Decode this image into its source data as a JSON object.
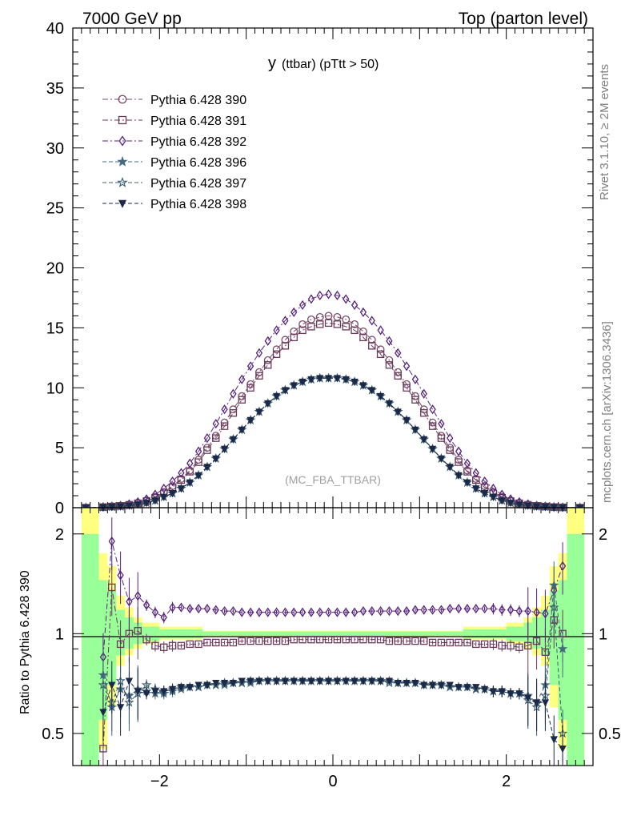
{
  "header": {
    "left": "7000 GeV pp",
    "right": "Top (parton level)",
    "plot_title_main": "y",
    "plot_title_sub": "(ttbar)  (pTtt > 50)",
    "analysis_tag": "(MC_FBA_TTBAR)",
    "side_rivet": "Rivet 3.1.10, ≥ 2M events",
    "side_mcplots": "mcplots.cern.ch [arXiv:1306.3436]",
    "ratio_ylabel": "Ratio to Pythia 6.428 390"
  },
  "colors": {
    "p390": "#7b4a68",
    "p391": "#6a3a5c",
    "p392": "#56237d",
    "p396": "#456a80",
    "p397": "#3a5e70",
    "p398": "#1c2848",
    "band_yellow": "#ffff80",
    "band_green": "#99ff99"
  },
  "chart_data": [
    {
      "type": "scatter",
      "panel": "main",
      "xlim": [
        -3,
        3
      ],
      "ylim": [
        0,
        40
      ],
      "y_ticks": [
        "0",
        "5",
        "10",
        "15",
        "20",
        "25",
        "30",
        "35",
        "40"
      ],
      "x": [
        -2.85,
        -2.65,
        -2.55,
        -2.45,
        -2.35,
        -2.25,
        -2.15,
        -2.05,
        -1.95,
        -1.85,
        -1.75,
        -1.65,
        -1.55,
        -1.45,
        -1.35,
        -1.25,
        -1.15,
        -1.05,
        -0.95,
        -0.85,
        -0.75,
        -0.65,
        -0.55,
        -0.45,
        -0.35,
        -0.25,
        -0.15,
        -0.05,
        0.05,
        0.15,
        0.25,
        0.35,
        0.45,
        0.55,
        0.65,
        0.75,
        0.85,
        0.95,
        1.05,
        1.15,
        1.25,
        1.35,
        1.45,
        1.55,
        1.65,
        1.75,
        1.85,
        1.95,
        2.05,
        2.15,
        2.25,
        2.35,
        2.45,
        2.55,
        2.65,
        2.85
      ],
      "series": [
        {
          "name": "Pythia 6.428 390",
          "marker": "circle-open",
          "line": "dashdot",
          "color_key": "p390",
          "values": [
            0.0,
            0.05,
            0.1,
            0.15,
            0.25,
            0.4,
            0.6,
            0.9,
            1.3,
            1.8,
            2.4,
            3.1,
            4.0,
            5.0,
            6.0,
            7.1,
            8.2,
            9.3,
            10.3,
            11.3,
            12.3,
            13.2,
            14.0,
            14.7,
            15.3,
            15.7,
            15.9,
            16.0,
            15.9,
            15.7,
            15.3,
            14.7,
            14.0,
            13.2,
            12.3,
            11.3,
            10.3,
            9.3,
            8.2,
            7.1,
            6.0,
            5.0,
            4.0,
            3.1,
            2.4,
            1.8,
            1.3,
            0.9,
            0.6,
            0.4,
            0.25,
            0.15,
            0.1,
            0.05,
            0.03,
            0.0
          ]
        },
        {
          "name": "Pythia 6.428 391",
          "marker": "square-open",
          "line": "dashdot",
          "color_key": "p391",
          "values": [
            0.0,
            0.05,
            0.1,
            0.15,
            0.24,
            0.37,
            0.55,
            0.83,
            1.2,
            1.7,
            2.3,
            3.0,
            3.8,
            4.8,
            5.8,
            6.8,
            7.9,
            9.0,
            10.0,
            11.0,
            11.9,
            12.8,
            13.5,
            14.2,
            14.8,
            15.1,
            15.3,
            15.4,
            15.3,
            15.1,
            14.8,
            14.2,
            13.5,
            12.8,
            11.9,
            11.0,
            10.0,
            9.0,
            7.9,
            6.8,
            5.8,
            4.8,
            3.8,
            3.0,
            2.3,
            1.7,
            1.2,
            0.83,
            0.55,
            0.37,
            0.24,
            0.15,
            0.1,
            0.05,
            0.03,
            0.0
          ]
        },
        {
          "name": "Pythia 6.428 392",
          "marker": "diamond-open",
          "line": "dashdot",
          "color_key": "p392",
          "values": [
            0.0,
            0.06,
            0.12,
            0.18,
            0.3,
            0.48,
            0.72,
            1.1,
            1.6,
            2.2,
            2.9,
            3.7,
            4.7,
            5.8,
            7.0,
            8.2,
            9.5,
            10.7,
            11.8,
            12.9,
            13.9,
            14.8,
            15.6,
            16.3,
            16.9,
            17.4,
            17.7,
            17.8,
            17.7,
            17.4,
            16.9,
            16.3,
            15.6,
            14.8,
            13.9,
            12.9,
            11.8,
            10.7,
            9.5,
            8.2,
            7.0,
            5.8,
            4.7,
            3.7,
            2.9,
            2.2,
            1.6,
            1.1,
            0.72,
            0.48,
            0.3,
            0.18,
            0.12,
            0.06,
            0.03,
            0.0
          ]
        },
        {
          "name": "Pythia 6.428 396",
          "marker": "star-filled",
          "line": "dashed",
          "color_key": "p396",
          "values": [
            0.0,
            0.04,
            0.07,
            0.1,
            0.17,
            0.27,
            0.4,
            0.6,
            0.9,
            1.2,
            1.6,
            2.1,
            2.7,
            3.4,
            4.1,
            4.9,
            5.7,
            6.5,
            7.3,
            8.0,
            8.7,
            9.3,
            9.8,
            10.2,
            10.5,
            10.7,
            10.8,
            10.8,
            10.8,
            10.7,
            10.5,
            10.2,
            9.8,
            9.3,
            8.7,
            8.0,
            7.3,
            6.5,
            5.7,
            4.9,
            4.1,
            3.4,
            2.7,
            2.1,
            1.6,
            1.2,
            0.9,
            0.6,
            0.4,
            0.27,
            0.17,
            0.1,
            0.07,
            0.04,
            0.02,
            0.0
          ]
        },
        {
          "name": "Pythia 6.428 397",
          "marker": "star-open",
          "line": "dashed",
          "color_key": "p397",
          "values": [
            0.0,
            0.04,
            0.07,
            0.1,
            0.17,
            0.27,
            0.4,
            0.6,
            0.9,
            1.2,
            1.6,
            2.1,
            2.7,
            3.4,
            4.1,
            4.9,
            5.7,
            6.5,
            7.3,
            8.0,
            8.7,
            9.3,
            9.8,
            10.2,
            10.5,
            10.7,
            10.8,
            10.8,
            10.8,
            10.7,
            10.5,
            10.2,
            9.8,
            9.3,
            8.7,
            8.0,
            7.3,
            6.5,
            5.7,
            4.9,
            4.1,
            3.4,
            2.7,
            2.1,
            1.6,
            1.2,
            0.9,
            0.6,
            0.4,
            0.27,
            0.17,
            0.1,
            0.07,
            0.04,
            0.02,
            0.0
          ]
        },
        {
          "name": "Pythia 6.428 398",
          "marker": "triangle-down-filled",
          "line": "dashed",
          "color_key": "p398",
          "values": [
            0.0,
            0.04,
            0.07,
            0.1,
            0.17,
            0.27,
            0.4,
            0.6,
            0.9,
            1.2,
            1.6,
            2.1,
            2.7,
            3.4,
            4.1,
            4.9,
            5.7,
            6.5,
            7.3,
            8.0,
            8.7,
            9.3,
            9.8,
            10.2,
            10.5,
            10.7,
            10.8,
            10.8,
            10.8,
            10.7,
            10.5,
            10.2,
            9.8,
            9.3,
            8.7,
            8.0,
            7.3,
            6.5,
            5.7,
            4.9,
            4.1,
            3.4,
            2.7,
            2.1,
            1.6,
            1.2,
            0.9,
            0.6,
            0.4,
            0.27,
            0.17,
            0.1,
            0.07,
            0.04,
            0.02,
            0.0
          ]
        }
      ]
    },
    {
      "type": "scatter",
      "panel": "ratio",
      "xlim": [
        -3,
        3
      ],
      "ylim": [
        0.4,
        2.4
      ],
      "y_scale": "log",
      "x_ticks": [
        "−2",
        "0",
        "2"
      ],
      "x_tick_values": [
        -2,
        0,
        2
      ],
      "y_ticks": [
        "0.5",
        "1",
        "2"
      ],
      "y_tick_values": [
        0.5,
        1,
        2
      ],
      "reference_line": 1,
      "bands": {
        "x_edges": [
          -2.9,
          -2.7,
          -2.6,
          -2.5,
          -2.4,
          -2.3,
          -2.2,
          -2.0,
          -1.5,
          1.5,
          2.0,
          2.2,
          2.3,
          2.4,
          2.5,
          2.6,
          2.7,
          2.9
        ],
        "yellow_lo": [
          0.2,
          0.45,
          0.6,
          0.8,
          0.86,
          0.9,
          0.93,
          0.96,
          0.98,
          0.96,
          0.93,
          0.9,
          0.86,
          0.8,
          0.6,
          0.45,
          0.2
        ],
        "yellow_hi": [
          3.0,
          1.75,
          1.6,
          1.3,
          1.2,
          1.12,
          1.08,
          1.05,
          1.02,
          1.05,
          1.08,
          1.12,
          1.2,
          1.3,
          1.6,
          1.75,
          3.0
        ],
        "green_lo": [
          0.3,
          0.55,
          0.7,
          0.86,
          0.9,
          0.93,
          0.95,
          0.97,
          0.985,
          0.97,
          0.95,
          0.93,
          0.9,
          0.86,
          0.7,
          0.55,
          0.3
        ],
        "green_hi": [
          2.0,
          1.45,
          1.35,
          1.18,
          1.12,
          1.08,
          1.05,
          1.03,
          1.015,
          1.03,
          1.05,
          1.08,
          1.12,
          1.18,
          1.35,
          1.45,
          2.0
        ]
      },
      "x": [
        -2.65,
        -2.55,
        -2.45,
        -2.35,
        -2.25,
        -2.15,
        -2.05,
        -1.95,
        -1.85,
        -1.75,
        -1.65,
        -1.55,
        -1.45,
        -1.35,
        -1.25,
        -1.15,
        -1.05,
        -0.95,
        -0.85,
        -0.75,
        -0.65,
        -0.55,
        -0.45,
        -0.35,
        -0.25,
        -0.15,
        -0.05,
        0.05,
        0.15,
        0.25,
        0.35,
        0.45,
        0.55,
        0.65,
        0.75,
        0.85,
        0.95,
        1.05,
        1.15,
        1.25,
        1.35,
        1.45,
        1.55,
        1.65,
        1.75,
        1.85,
        1.95,
        2.05,
        2.15,
        2.25,
        2.35,
        2.45,
        2.55,
        2.65
      ],
      "series": [
        {
          "name": "Pythia 6.428 391",
          "color_key": "p391",
          "marker": "square-open",
          "values": [
            0.45,
            1.38,
            0.93,
            1.0,
            1.02,
            0.96,
            0.92,
            0.91,
            0.92,
            0.92,
            0.93,
            0.93,
            0.94,
            0.94,
            0.94,
            0.94,
            0.95,
            0.95,
            0.95,
            0.95,
            0.95,
            0.95,
            0.96,
            0.96,
            0.96,
            0.96,
            0.96,
            0.96,
            0.96,
            0.96,
            0.96,
            0.96,
            0.96,
            0.95,
            0.95,
            0.95,
            0.95,
            0.95,
            0.94,
            0.94,
            0.94,
            0.94,
            0.94,
            0.93,
            0.93,
            0.93,
            0.92,
            0.92,
            0.91,
            0.92,
            0.95,
            0.88,
            1.1,
            1.0
          ]
        },
        {
          "name": "Pythia 6.428 392",
          "color_key": "p392",
          "marker": "diamond-open",
          "values": [
            0.85,
            1.9,
            1.5,
            1.25,
            1.3,
            1.22,
            1.16,
            1.12,
            1.2,
            1.2,
            1.19,
            1.19,
            1.19,
            1.18,
            1.17,
            1.17,
            1.16,
            1.16,
            1.16,
            1.16,
            1.16,
            1.16,
            1.16,
            1.16,
            1.16,
            1.16,
            1.16,
            1.16,
            1.16,
            1.16,
            1.17,
            1.17,
            1.17,
            1.17,
            1.17,
            1.17,
            1.18,
            1.18,
            1.18,
            1.18,
            1.19,
            1.19,
            1.19,
            1.19,
            1.19,
            1.19,
            1.18,
            1.18,
            1.17,
            1.17,
            1.16,
            1.15,
            1.35,
            1.6
          ]
        },
        {
          "name": "Pythia 6.428 396",
          "color_key": "p396",
          "marker": "star-filled",
          "values": [
            0.75,
            0.6,
            0.68,
            0.65,
            0.68,
            0.67,
            0.66,
            0.66,
            0.67,
            0.68,
            0.69,
            0.69,
            0.7,
            0.7,
            0.7,
            0.71,
            0.71,
            0.71,
            0.72,
            0.72,
            0.72,
            0.72,
            0.72,
            0.72,
            0.72,
            0.72,
            0.72,
            0.72,
            0.72,
            0.72,
            0.72,
            0.72,
            0.72,
            0.72,
            0.71,
            0.71,
            0.71,
            0.7,
            0.7,
            0.7,
            0.69,
            0.69,
            0.69,
            0.68,
            0.68,
            0.67,
            0.67,
            0.66,
            0.66,
            0.65,
            0.62,
            0.7,
            1.4,
            0.9
          ]
        },
        {
          "name": "Pythia 6.428 397",
          "color_key": "p397",
          "marker": "star-open",
          "values": [
            0.7,
            0.62,
            0.72,
            0.62,
            0.66,
            0.7,
            0.68,
            0.67,
            0.68,
            0.69,
            0.69,
            0.69,
            0.7,
            0.7,
            0.71,
            0.71,
            0.71,
            0.72,
            0.72,
            0.72,
            0.72,
            0.72,
            0.72,
            0.72,
            0.72,
            0.72,
            0.72,
            0.72,
            0.72,
            0.72,
            0.72,
            0.72,
            0.72,
            0.71,
            0.71,
            0.71,
            0.71,
            0.7,
            0.7,
            0.7,
            0.69,
            0.69,
            0.69,
            0.68,
            0.68,
            0.67,
            0.67,
            0.66,
            0.66,
            0.63,
            0.6,
            0.65,
            1.2,
            0.5
          ]
        },
        {
          "name": "Pythia 6.428 398",
          "color_key": "p398",
          "marker": "triangle-down-filled",
          "values": [
            0.58,
            0.7,
            0.6,
            0.72,
            0.67,
            0.66,
            0.67,
            0.67,
            0.68,
            0.69,
            0.69,
            0.7,
            0.7,
            0.71,
            0.71,
            0.71,
            0.72,
            0.72,
            0.72,
            0.72,
            0.72,
            0.72,
            0.72,
            0.72,
            0.72,
            0.72,
            0.72,
            0.72,
            0.72,
            0.72,
            0.72,
            0.72,
            0.72,
            0.72,
            0.71,
            0.71,
            0.71,
            0.7,
            0.7,
            0.7,
            0.7,
            0.69,
            0.69,
            0.69,
            0.68,
            0.67,
            0.67,
            0.66,
            0.66,
            0.64,
            0.62,
            0.62,
            0.48,
            0.45
          ]
        }
      ]
    }
  ]
}
